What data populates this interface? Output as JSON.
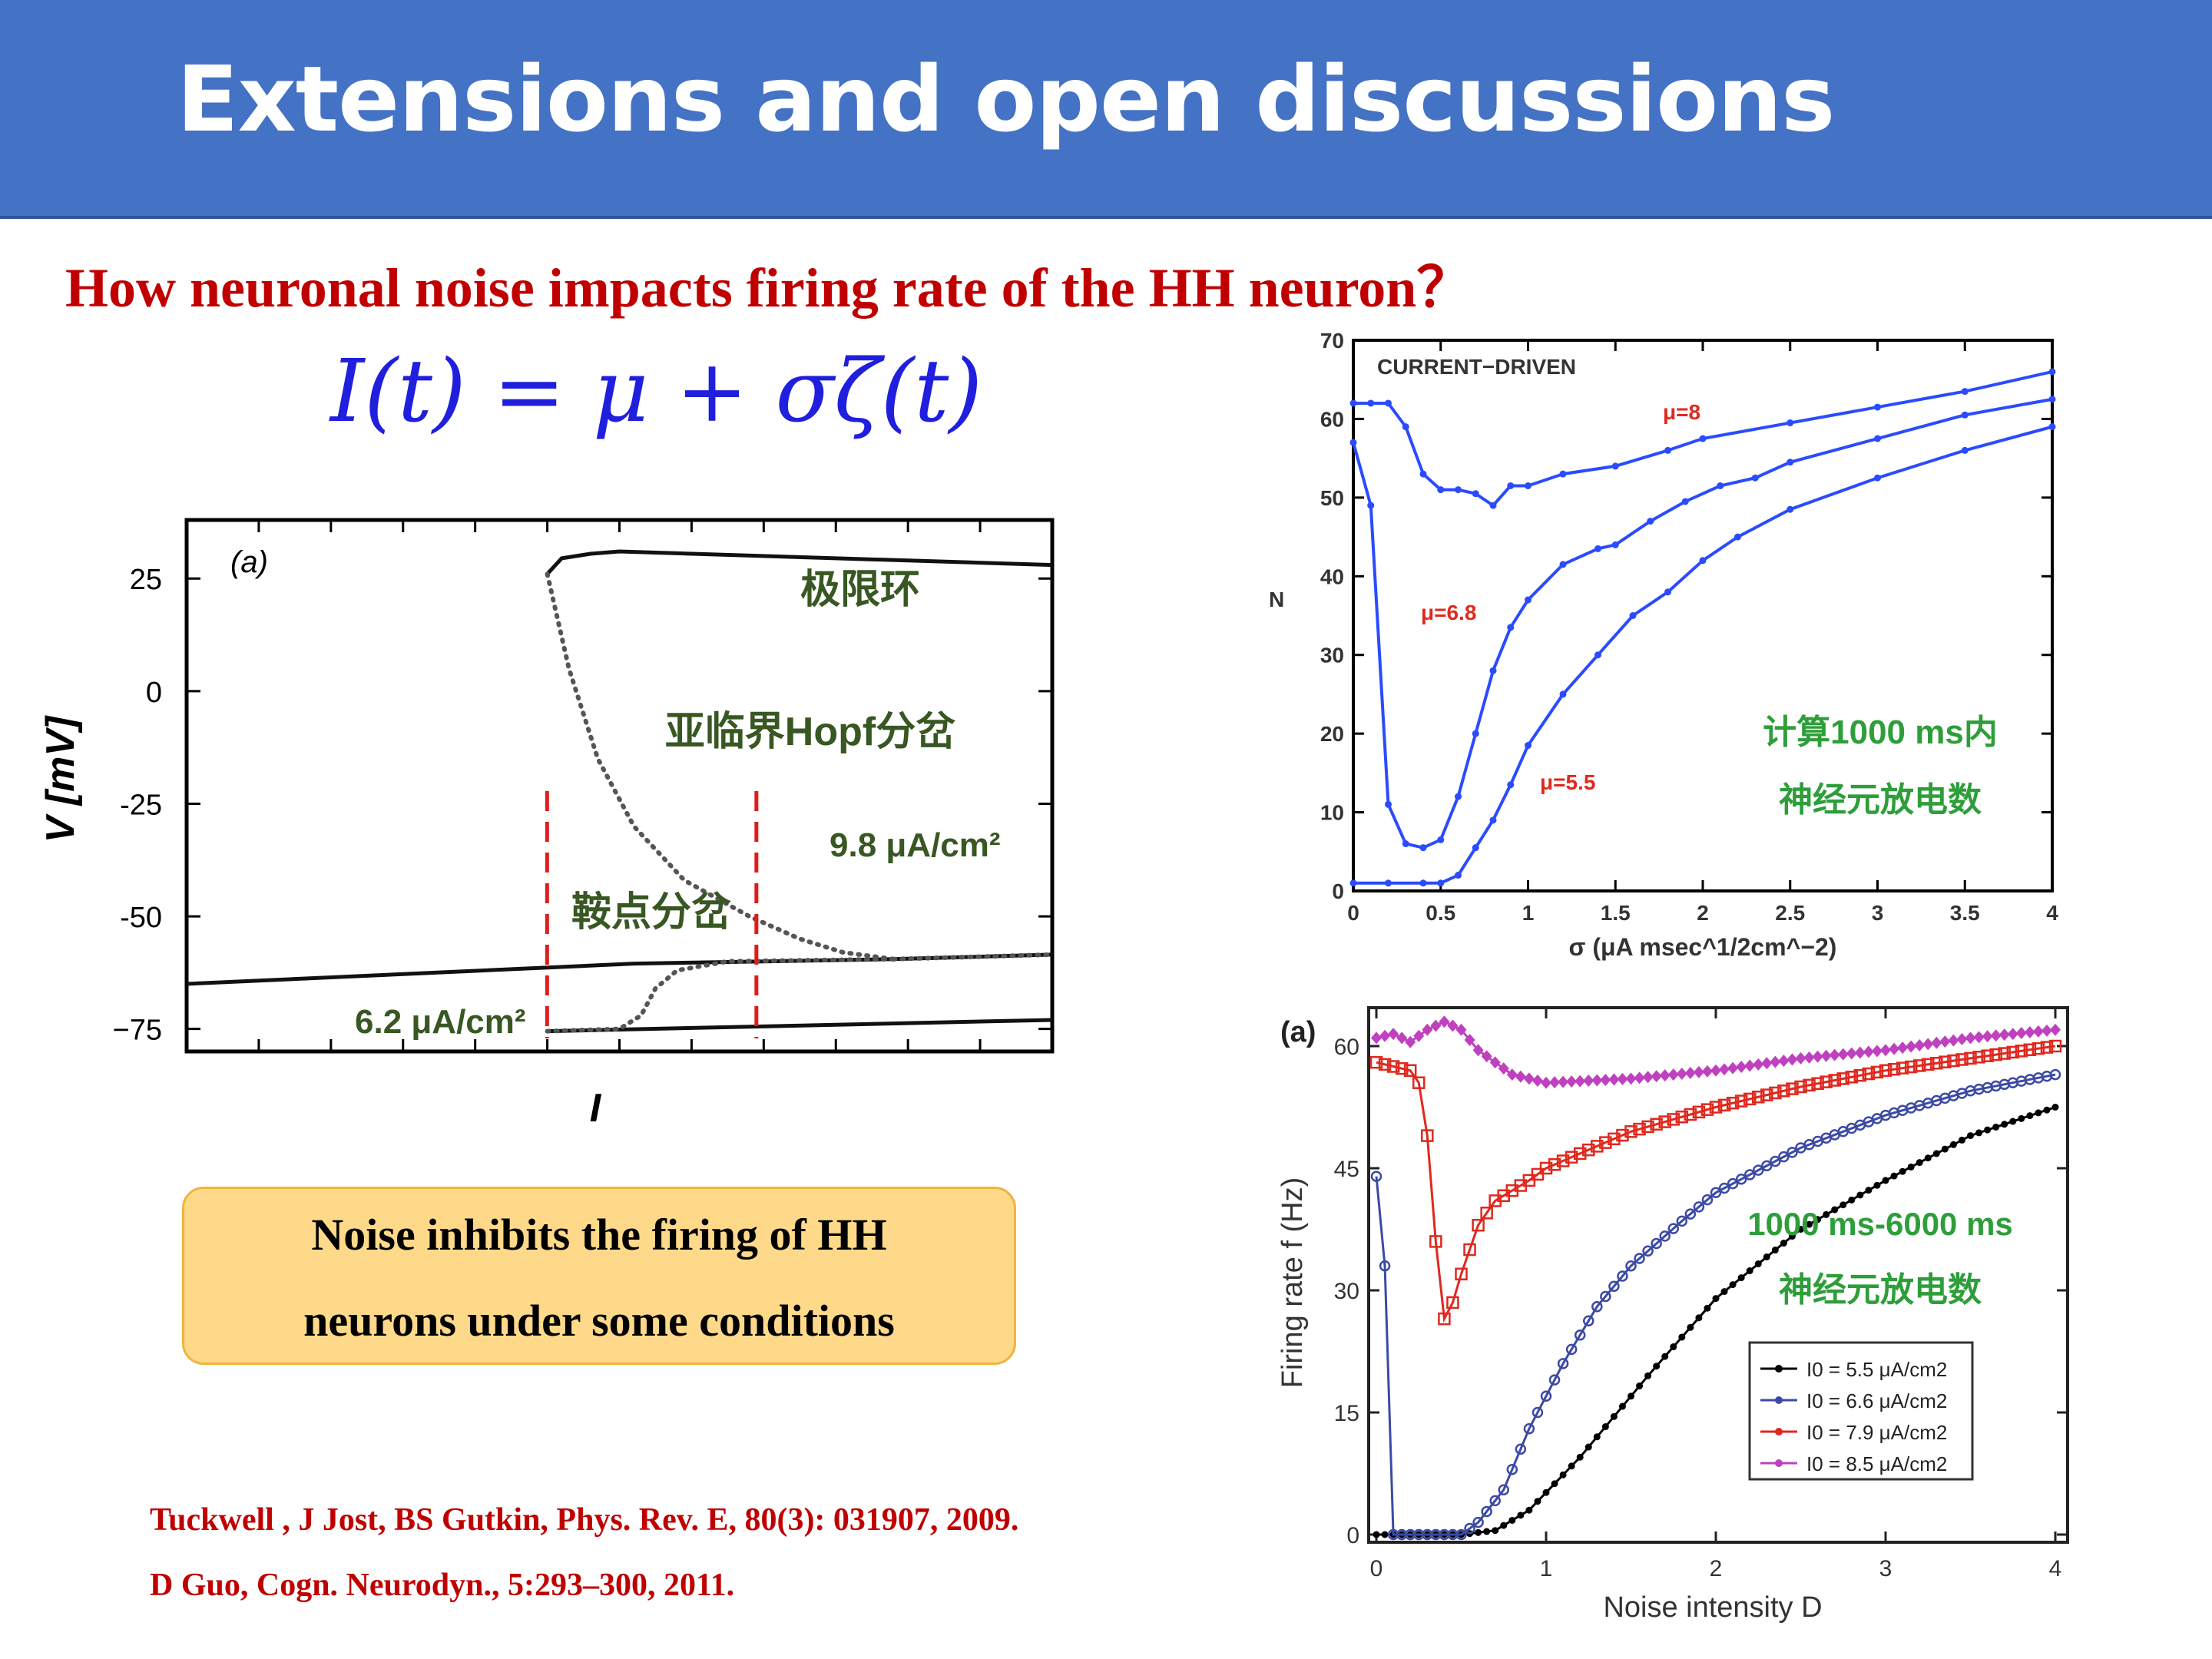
{
  "slide": {
    "title": "Extensions and open discussions",
    "subtitle": "How neuronal noise impacts firing rate of the HH neuron？",
    "equation": "I(t) = μ + σζ(t)",
    "callout_lines": [
      "Noise inhibits the firing of HH",
      "neurons under some conditions"
    ],
    "references": [
      "Tuckwell , J Jost, BS Gutkin, Phys. Rev. E, 80(3): 031907, 2009.",
      "D Guo, Cogn. Neurodyn., 5:293–300, 2011."
    ],
    "colors": {
      "banner": "#4472c4",
      "title_text": "#ffffff",
      "subtitle": "#c00000",
      "equation": "#1f1fdd",
      "callout_fill": "#ffd98a",
      "annotation_green": "#2e7d32",
      "annotation_dark_green": "#385723"
    }
  },
  "chart_data": [
    {
      "type": "line",
      "panel_label": "(a)",
      "xlabel": "I",
      "ylabel": "V [mV]",
      "yticks": [
        "25",
        "0",
        "-25",
        "-50",
        "−75"
      ],
      "ylim": [
        -80,
        38
      ],
      "x_range": [
        0,
        12
      ],
      "annotations": {
        "limit_cycle": "极限环",
        "hopf": "亚临界Hopf分岔",
        "saddle": "鞍点分岔",
        "i_low": "6.2 μA/cm²",
        "i_high": "9.8 μA/cm²"
      },
      "markers": [
        6.2,
        9.8
      ],
      "series": [
        {
          "style": "solid",
          "x": [
            0,
            6.2,
            9.8,
            12
          ],
          "y": [
            -65,
            -60.5,
            -59.5,
            -58.5
          ]
        },
        {
          "style": "solid",
          "x": [
            5.0,
            5.2,
            5.6,
            6.0,
            12
          ],
          "y": [
            26,
            29.5,
            30.5,
            31,
            28
          ]
        },
        {
          "style": "solid",
          "x": [
            5.0,
            12
          ],
          "y": [
            -75.5,
            -73
          ]
        },
        {
          "style": "dotted",
          "x": [
            5.0,
            5.3,
            5.7,
            6.2,
            6.9,
            7.8,
            8.5,
            9.1,
            9.8
          ],
          "y": [
            26,
            5,
            -15,
            -30,
            -42,
            -50,
            -55,
            -58,
            -59.5
          ]
        },
        {
          "style": "dotted",
          "x": [
            9.8,
            12
          ],
          "y": [
            -59.5,
            -58.5
          ]
        },
        {
          "style": "dotted",
          "x": [
            5.0,
            6.0,
            6.3,
            6.5,
            6.8,
            7.5,
            9.8
          ],
          "y": [
            -75.5,
            -75,
            -72,
            -66,
            -62,
            -60,
            -59.5
          ]
        }
      ]
    },
    {
      "type": "line",
      "title": "CURRENT−DRIVEN",
      "xlabel": "σ (μA msec^1/2cm^−2)",
      "ylabel": "N",
      "xlim": [
        0,
        4
      ],
      "ylim": [
        0,
        70
      ],
      "xticks": [
        "0",
        "0.5",
        "1",
        "1.5",
        "2",
        "2.5",
        "3",
        "3.5",
        "4"
      ],
      "yticks": [
        "0",
        "10",
        "20",
        "30",
        "40",
        "50",
        "60",
        "70"
      ],
      "annotations": {
        "count_1": "计算1000 ms内",
        "count_2": "神经元放电数"
      },
      "series": [
        {
          "name": "μ=8",
          "x": [
            0,
            0.1,
            0.2,
            0.3,
            0.4,
            0.5,
            0.6,
            0.7,
            0.8,
            0.9,
            1.0,
            1.2,
            1.5,
            1.8,
            2.0,
            2.5,
            3.0,
            3.5,
            4.0
          ],
          "y": [
            62,
            62,
            62,
            59,
            53,
            51,
            51,
            50.5,
            49,
            51.5,
            51.5,
            53,
            54,
            56,
            57.5,
            59.5,
            61.5,
            63.5,
            66
          ]
        },
        {
          "name": "μ=6.8",
          "x": [
            0,
            0.1,
            0.2,
            0.3,
            0.4,
            0.5,
            0.6,
            0.7,
            0.8,
            0.9,
            1.0,
            1.2,
            1.4,
            1.5,
            1.7,
            1.9,
            2.1,
            2.3,
            2.5,
            3.0,
            3.5,
            4.0
          ],
          "y": [
            57,
            49,
            11,
            6,
            5.5,
            6.5,
            12,
            20,
            28,
            33.5,
            37,
            41.5,
            43.5,
            44,
            47,
            49.5,
            51.5,
            52.5,
            54.5,
            57.5,
            60.5,
            62.5
          ]
        },
        {
          "name": "μ=5.5",
          "x": [
            0,
            0.2,
            0.4,
            0.5,
            0.6,
            0.7,
            0.8,
            0.9,
            1.0,
            1.2,
            1.4,
            1.6,
            1.8,
            2.0,
            2.2,
            2.5,
            3.0,
            3.5,
            4.0
          ],
          "y": [
            1,
            1,
            1,
            1,
            2,
            5.5,
            9,
            13.5,
            18.5,
            25,
            30,
            35,
            38,
            42,
            45,
            48.5,
            52.5,
            56,
            59
          ]
        }
      ]
    },
    {
      "type": "line",
      "panel_label": "(a)",
      "xlabel": "Noise intensity D",
      "ylabel": "Firing rate f (Hz)",
      "xlim": [
        0,
        4
      ],
      "ylim": [
        0,
        62
      ],
      "xticks": [
        "0",
        "1",
        "2",
        "3",
        "4"
      ],
      "yticks": [
        "0",
        "15",
        "30",
        "45",
        "60"
      ],
      "annotations": {
        "window": "1000 ms-6000 ms",
        "count_2": "神经元放电数"
      },
      "series": [
        {
          "name": "I0 = 5.5 μA/cm2",
          "color": "#000000",
          "x": [
            0,
            0.5,
            0.7,
            0.9,
            1.2,
            1.6,
            2.0,
            2.5,
            3.0,
            3.5,
            4.0
          ],
          "y": [
            0,
            0,
            0.5,
            3,
            9.5,
            19.5,
            29,
            37.5,
            43.5,
            49,
            52.5
          ]
        },
        {
          "name": "I0 = 6.6 μA/cm2",
          "color": "#3c4aa5",
          "x": [
            0,
            0.05,
            0.1,
            0.2,
            0.5,
            0.6,
            0.75,
            0.9,
            1.1,
            1.3,
            1.5,
            1.8,
            2.0,
            2.5,
            3.0,
            3.5,
            4.0
          ],
          "y": [
            44,
            33,
            0,
            0,
            0,
            1.5,
            5.5,
            13,
            21,
            28,
            33,
            38.5,
            42,
            47.5,
            51.5,
            54.5,
            56.5
          ]
        },
        {
          "name": "I0 = 7.9 μA/cm2",
          "color": "#e0281e",
          "x": [
            0,
            0.1,
            0.2,
            0.25,
            0.3,
            0.35,
            0.4,
            0.45,
            0.5,
            0.6,
            0.7,
            0.9,
            1.0,
            1.5,
            2.0,
            2.5,
            3.0,
            3.5,
            4.0
          ],
          "y": [
            58,
            57.5,
            57,
            55.5,
            49,
            36,
            26.5,
            28.5,
            32,
            38,
            41,
            43.5,
            45,
            49.5,
            52.5,
            55,
            57,
            58.5,
            60
          ]
        },
        {
          "name": "I0 = 8.5 μA/cm2",
          "color": "#c041c0",
          "x": [
            0,
            0.1,
            0.2,
            0.3,
            0.4,
            0.5,
            0.6,
            0.8,
            1.0,
            1.5,
            2.0,
            2.5,
            3.0,
            3.5,
            4.0
          ],
          "y": [
            61,
            61.5,
            60.5,
            62,
            63,
            62,
            59.5,
            56.5,
            55.5,
            56,
            57,
            58.5,
            59.5,
            61,
            62
          ]
        }
      ]
    }
  ]
}
